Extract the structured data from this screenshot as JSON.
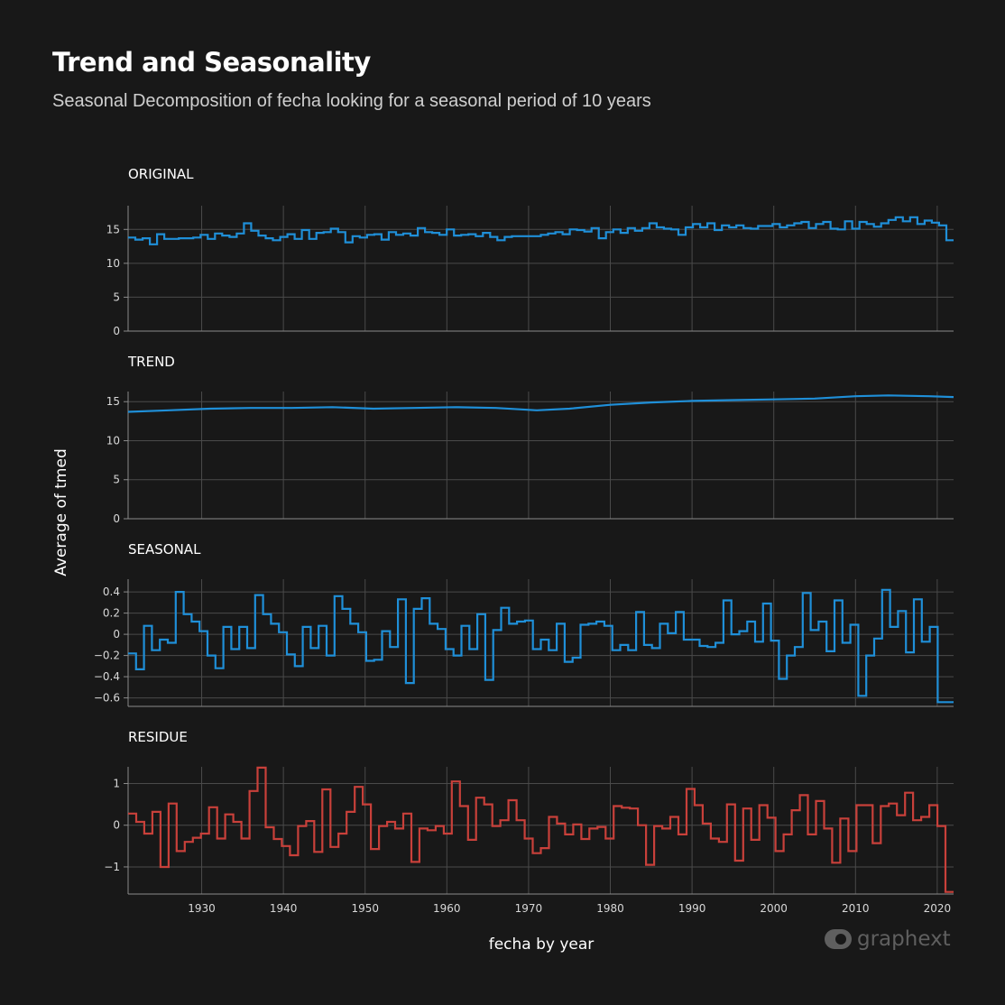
{
  "header": {
    "title": "Trend and Seasonality",
    "subtitle": "Seasonal Decomposition of fecha looking for a seasonal period of 10 years"
  },
  "watermark": {
    "text": "graphext"
  },
  "colors": {
    "blue": "#1f8fd8",
    "red": "#c8403a",
    "background": "#181818",
    "grid": "#4a4a4a",
    "axis": "#8a8a8a"
  },
  "chart_data": {
    "type": "line",
    "step": true,
    "xlabel": "fecha by year",
    "ylabel": "Average of tmed",
    "x_start": 1921,
    "x_end": 2022,
    "x_ticks": [
      "1930",
      "1940",
      "1950",
      "1960",
      "1970",
      "1980",
      "1990",
      "2000",
      "2010",
      "2020"
    ],
    "grid": true,
    "panels": [
      {
        "name": "ORIGINAL",
        "color": "#1f8fd8",
        "ylim": [
          0,
          18.5
        ],
        "yticks": [
          0,
          5,
          10,
          15
        ],
        "ytick_labels": [
          "0",
          "5",
          "10",
          "15"
        ],
        "values": [
          13.8,
          13.5,
          13.7,
          12.8,
          14.3,
          13.6,
          13.6,
          13.7,
          13.7,
          13.8,
          14.2,
          13.6,
          14.4,
          14.1,
          13.9,
          14.4,
          15.9,
          14.8,
          14.1,
          13.7,
          13.4,
          13.9,
          14.3,
          13.6,
          14.9,
          13.6,
          14.5,
          14.6,
          15.1,
          14.6,
          13.1,
          14.0,
          13.8,
          14.2,
          14.3,
          13.5,
          14.6,
          14.2,
          14.4,
          14.1,
          15.2,
          14.6,
          14.5,
          14.2,
          15.0,
          14.1,
          14.2,
          14.3,
          14.0,
          14.5,
          13.9,
          13.4,
          13.9,
          14.0,
          14.0,
          14.0,
          14.0,
          14.2,
          14.4,
          14.6,
          14.3,
          15.0,
          14.9,
          14.7,
          15.2,
          13.7,
          14.6,
          15.0,
          14.5,
          15.2,
          14.8,
          15.2,
          15.9,
          15.3,
          15.1,
          15.0,
          14.2,
          15.3,
          15.8,
          15.3,
          15.9,
          14.9,
          15.6,
          15.3,
          15.6,
          15.2,
          15.1,
          15.5,
          15.5,
          15.8,
          15.3,
          15.6,
          15.9,
          16.1,
          15.2,
          15.8,
          16.1,
          15.1,
          15.0,
          16.2,
          15.1,
          16.1,
          15.8,
          15.4,
          15.9,
          16.4,
          16.8,
          16.2,
          16.8,
          15.8,
          16.3,
          16.0,
          15.6,
          13.4
        ]
      },
      {
        "name": "TREND",
        "color": "#1f8fd8",
        "step": false,
        "ylim": [
          0,
          16.3
        ],
        "yticks": [
          0,
          5,
          10,
          15
        ],
        "ytick_labels": [
          "0",
          "5",
          "10",
          "15"
        ],
        "values": [
          13.7,
          13.9,
          14.1,
          14.2,
          14.2,
          14.3,
          14.1,
          14.2,
          14.3,
          14.2,
          13.9,
          14.1,
          14.6,
          14.9,
          15.1,
          15.2,
          15.3,
          15.4,
          15.7,
          15.8,
          15.7,
          15.6
        ],
        "x": [
          1921,
          1926,
          1931,
          1936,
          1941,
          1946,
          1951,
          1956,
          1961,
          1966,
          1971,
          1975,
          1980,
          1985,
          1990,
          1995,
          2000,
          2005,
          2010,
          2014,
          2019,
          2022
        ]
      },
      {
        "name": "SEASONAL",
        "color": "#1f8fd8",
        "ylim": [
          -0.68,
          0.52
        ],
        "yticks": [
          -0.6,
          -0.4,
          -0.2,
          0,
          0.2,
          0.4
        ],
        "ytick_labels": [
          "−0.6",
          "−0.4",
          "−0.2",
          "0",
          "0.2",
          "0.4"
        ],
        "values": [
          -0.18,
          -0.33,
          0.08,
          -0.15,
          -0.05,
          -0.08,
          0.4,
          0.19,
          0.12,
          0.03,
          -0.2,
          -0.32,
          0.07,
          -0.14,
          0.07,
          -0.13,
          0.37,
          0.19,
          0.1,
          0.02,
          -0.19,
          -0.3,
          0.07,
          -0.13,
          0.08,
          -0.2,
          0.36,
          0.24,
          0.1,
          0.02,
          -0.25,
          -0.24,
          0.03,
          -0.12,
          0.33,
          -0.46,
          0.24,
          0.34,
          0.1,
          0.05,
          -0.14,
          -0.2,
          0.08,
          -0.14,
          0.19,
          -0.43,
          0.04,
          0.25,
          0.1,
          0.12,
          0.13,
          -0.14,
          -0.05,
          -0.15,
          0.1,
          -0.26,
          -0.22,
          0.09,
          0.1,
          0.12,
          0.08,
          -0.15,
          -0.1,
          -0.15,
          0.21,
          -0.1,
          -0.13,
          0.1,
          0.01,
          0.21,
          -0.05,
          -0.05,
          -0.11,
          -0.12,
          -0.08,
          0.32,
          0.0,
          0.03,
          0.12,
          -0.07,
          0.29,
          -0.06,
          -0.42,
          -0.2,
          -0.12,
          0.39,
          0.04,
          0.12,
          -0.16,
          0.32,
          -0.08,
          0.09,
          -0.58,
          -0.2,
          -0.04,
          0.42,
          0.07,
          0.22,
          -0.17,
          0.33,
          -0.07,
          0.07,
          -0.64,
          -0.64
        ]
      },
      {
        "name": "RESIDUE",
        "color": "#c8403a",
        "ylim": [
          -1.65,
          1.4
        ],
        "yticks": [
          -1,
          0,
          1
        ],
        "ytick_labels": [
          "−1",
          "0",
          "1"
        ],
        "values": [
          0.28,
          0.08,
          -0.2,
          0.32,
          -1.0,
          0.52,
          -0.62,
          -0.4,
          -0.3,
          -0.2,
          0.43,
          -0.32,
          0.26,
          0.08,
          -0.32,
          0.82,
          1.38,
          -0.05,
          -0.33,
          -0.5,
          -0.72,
          -0.02,
          0.1,
          -0.64,
          0.86,
          -0.52,
          -0.2,
          0.32,
          0.92,
          0.5,
          -0.57,
          -0.02,
          0.08,
          -0.08,
          0.28,
          -0.88,
          -0.08,
          -0.12,
          -0.02,
          -0.2,
          1.05,
          0.46,
          -0.35,
          0.66,
          0.5,
          -0.02,
          0.12,
          0.6,
          0.12,
          -0.32,
          -0.67,
          -0.55,
          0.2,
          0.04,
          -0.22,
          0.02,
          -0.33,
          -0.08,
          -0.04,
          -0.32,
          0.46,
          0.42,
          0.4,
          0.0,
          -0.95,
          -0.02,
          -0.08,
          0.2,
          -0.22,
          0.87,
          0.48,
          0.04,
          -0.32,
          -0.4,
          0.5,
          -0.85,
          0.4,
          -0.35,
          0.48,
          0.18,
          -0.62,
          -0.22,
          0.36,
          0.72,
          -0.22,
          0.58,
          -0.08,
          -0.9,
          0.16,
          -0.62,
          0.48,
          0.48,
          -0.43,
          0.46,
          0.52,
          0.24,
          0.78,
          0.12,
          0.2,
          0.48,
          -0.02,
          -1.6
        ]
      }
    ]
  }
}
